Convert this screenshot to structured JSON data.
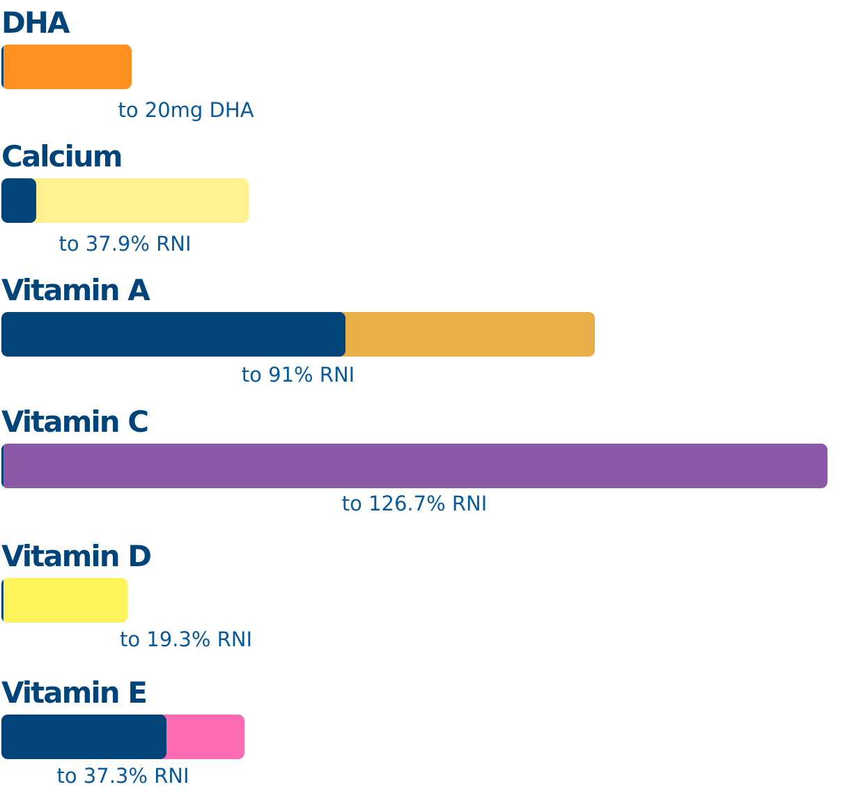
{
  "chart_data": {
    "type": "bar",
    "orientation": "horizontal",
    "base_color": "#00447a",
    "series": [
      {
        "name": "DHA",
        "fill_fraction": 0.01,
        "total": 20,
        "caption": "to 20mg DHA",
        "color": "#ff9121"
      },
      {
        "name": "Calcium",
        "fill_fraction": 0.14,
        "total": 37.9,
        "caption": "to 37.9% RNI",
        "color": "#fff190"
      },
      {
        "name": "Vitamin A",
        "fill_fraction": 0.58,
        "total": 91,
        "caption": "to 91% RNI",
        "color": "#e8ae47"
      },
      {
        "name": "Vitamin C",
        "fill_fraction": 0.002,
        "total": 126.7,
        "caption": "to 126.7% RNI",
        "color": "#8c59a9"
      },
      {
        "name": "Vitamin D",
        "fill_fraction": 0.01,
        "total": 19.3,
        "caption": "to 19.3% RNI",
        "color": "#fff35b"
      },
      {
        "name": "Vitamin E",
        "fill_fraction": 0.68,
        "total": 37.3,
        "caption": "to 37.3% RNI",
        "color": "#ff6bb2"
      }
    ]
  }
}
